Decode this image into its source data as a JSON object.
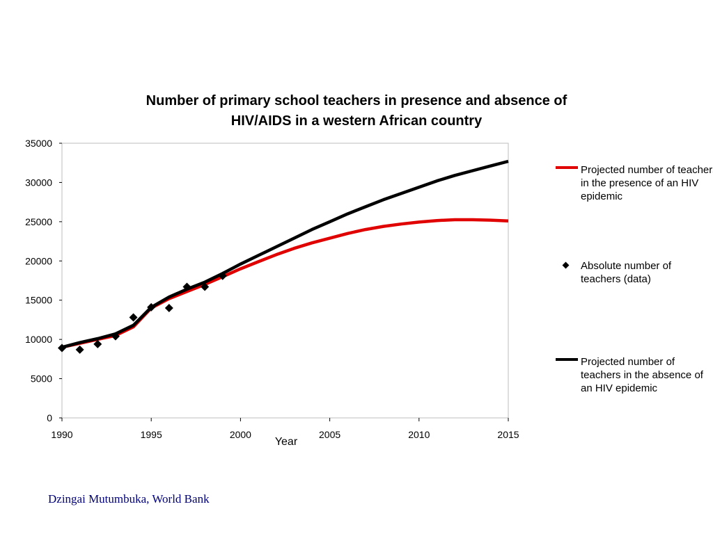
{
  "chart_data": {
    "type": "line",
    "title_lines": [
      "Number of primary school teachers in presence and absence of",
      "HIV/AIDS in a western African country"
    ],
    "xlabel": "Year",
    "ylabel": "",
    "xlim": [
      1990,
      2015
    ],
    "ylim": [
      0,
      35000
    ],
    "x_ticks": [
      1990,
      1995,
      2000,
      2005,
      2010,
      2015
    ],
    "y_ticks": [
      0,
      5000,
      10000,
      15000,
      20000,
      25000,
      30000,
      35000
    ],
    "grid": false,
    "legend_position": "right",
    "series": [
      {
        "name": "Projected number of teachers in the presence of an HIV epidemic",
        "style": "line",
        "color": "#e00000",
        "x": [
          1990,
          1991,
          1992,
          1993,
          1994,
          1995,
          1996,
          1997,
          1998,
          1999,
          2000,
          2001,
          2002,
          2003,
          2004,
          2005,
          2006,
          2007,
          2008,
          2009,
          2010,
          2011,
          2012,
          2013,
          2014,
          2015
        ],
        "y": [
          9000,
          9500,
          10000,
          10500,
          11600,
          14000,
          15200,
          16100,
          17000,
          18000,
          19000,
          19900,
          20800,
          21600,
          22300,
          22900,
          23500,
          24000,
          24400,
          24700,
          24950,
          25150,
          25250,
          25250,
          25200,
          25100
        ]
      },
      {
        "name": "Absolute number of teachers (data)",
        "style": "markers",
        "marker": "diamond",
        "color": "#000000",
        "x": [
          1990,
          1991,
          1992,
          1993,
          1994,
          1995,
          1996,
          1997,
          1998,
          1999
        ],
        "y": [
          8900,
          8700,
          9400,
          10400,
          12800,
          14100,
          14000,
          16700,
          16700,
          18100
        ]
      },
      {
        "name": "Projected number of teachers in the absence of an HIV epidemic",
        "style": "line",
        "color": "#000000",
        "x": [
          1990,
          1991,
          1992,
          1993,
          1994,
          1995,
          1996,
          1997,
          1998,
          1999,
          2000,
          2001,
          2002,
          2003,
          2004,
          2005,
          2006,
          2007,
          2008,
          2009,
          2010,
          2011,
          2012,
          2013,
          2014,
          2015
        ],
        "y": [
          9000,
          9600,
          10100,
          10700,
          11800,
          14100,
          15400,
          16400,
          17300,
          18400,
          19600,
          20700,
          21800,
          22900,
          24000,
          25000,
          26000,
          26900,
          27800,
          28600,
          29400,
          30200,
          30900,
          31500,
          32100,
          32700
        ]
      }
    ]
  },
  "footer": {
    "credit": "Dzingai Mutumbuka, World Bank"
  }
}
